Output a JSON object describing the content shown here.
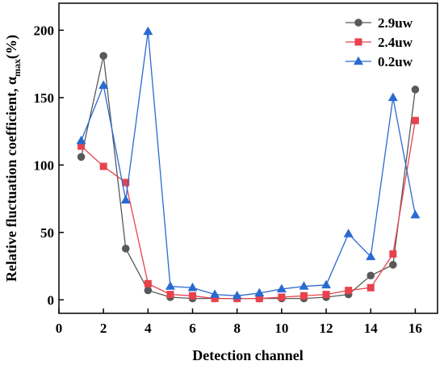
{
  "chart_data": {
    "type": "line",
    "xlabel": "Detection channel",
    "ylabel_main": "Relative fluctuation coefficient, α",
    "ylabel_sub": "max",
    "ylabel_unit": "(%)",
    "xlim": [
      0,
      17
    ],
    "ylim": [
      -10,
      220
    ],
    "xticks": [
      0,
      2,
      4,
      6,
      8,
      10,
      12,
      14,
      16
    ],
    "yticks": [
      0,
      50,
      100,
      150,
      200
    ],
    "grid": false,
    "legend_position": "top-right",
    "x": [
      1,
      2,
      3,
      4,
      5,
      6,
      7,
      8,
      9,
      10,
      11,
      12,
      13,
      14,
      15,
      16
    ],
    "series": [
      {
        "name": "2.9uw",
        "color": "#595959",
        "marker": "circle",
        "values": [
          106,
          181,
          38,
          7,
          2,
          1,
          1,
          1,
          1,
          1,
          1,
          2,
          4,
          18,
          26,
          156
        ]
      },
      {
        "name": "2.4uw",
        "color": "#e8424d",
        "marker": "square",
        "values": [
          114,
          99,
          87,
          12,
          4,
          3,
          1,
          1,
          1,
          2,
          3,
          4,
          7,
          9,
          34,
          133
        ]
      },
      {
        "name": "0.2uw",
        "color": "#2a6ad0",
        "marker": "triangle",
        "values": [
          118,
          159,
          74,
          199,
          10,
          9,
          4,
          3,
          5,
          8,
          10,
          11,
          49,
          32,
          150,
          63
        ]
      }
    ]
  }
}
